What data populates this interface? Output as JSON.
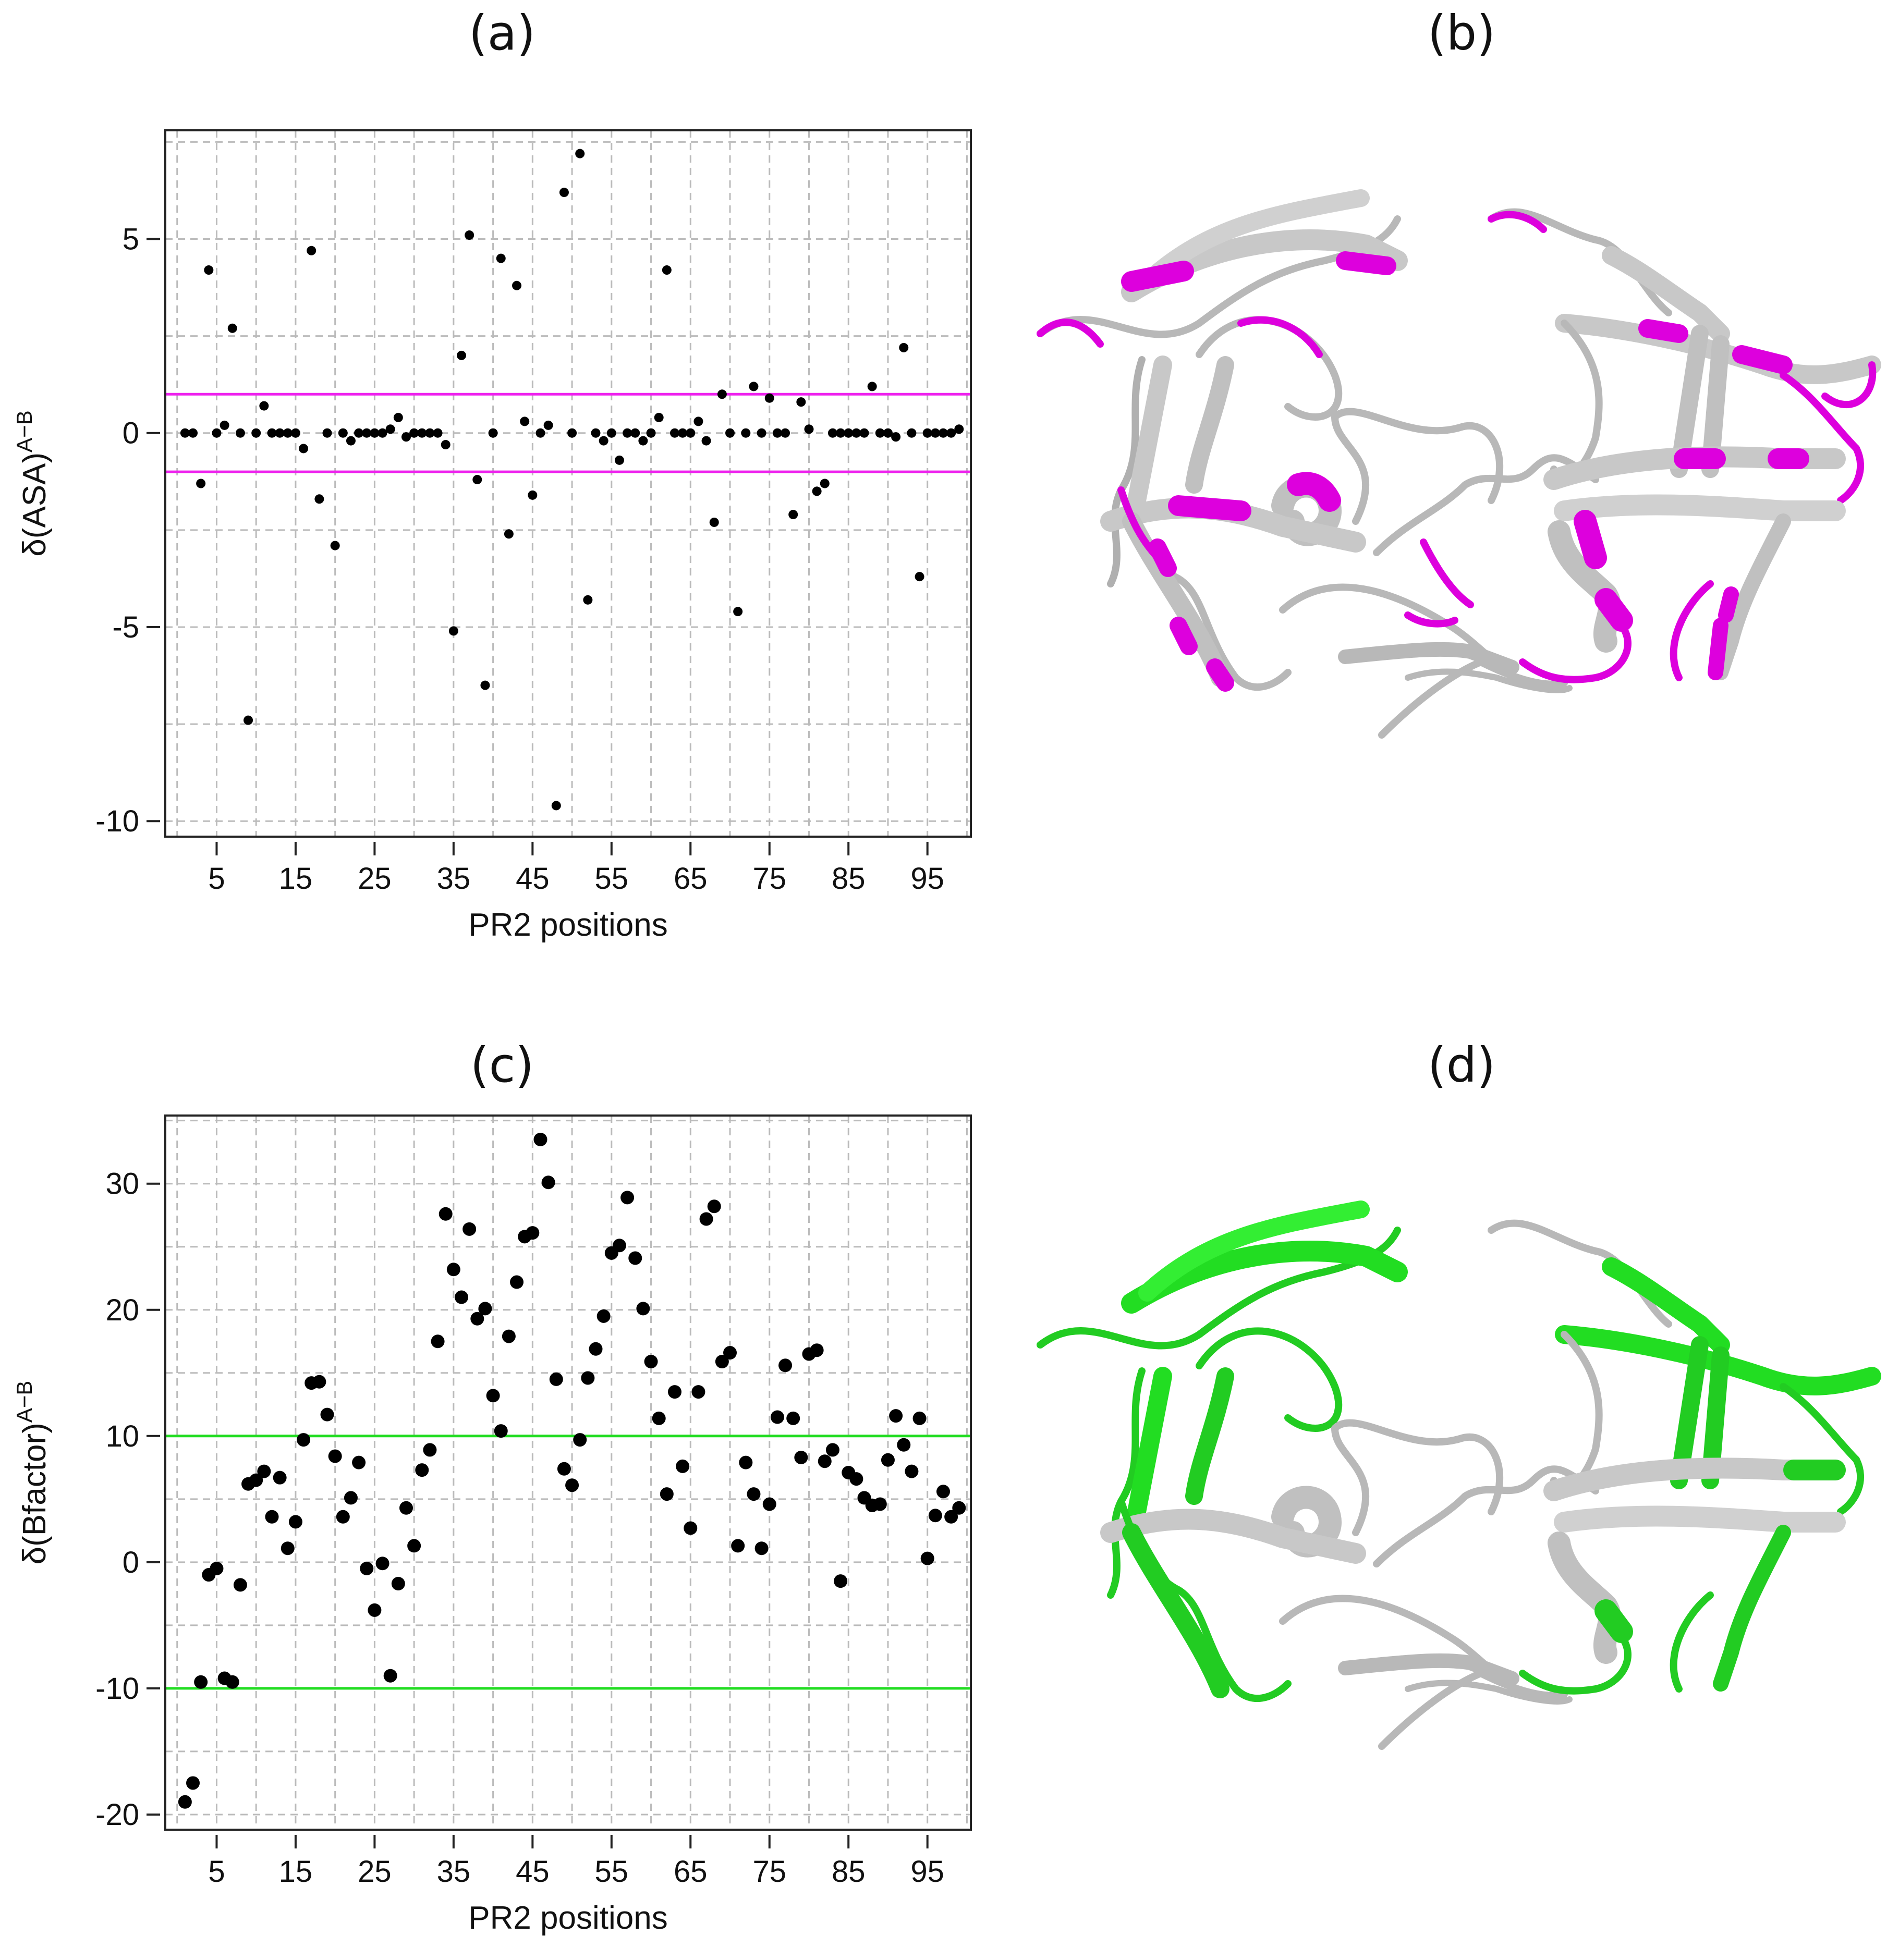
{
  "panels": {
    "a": "(a)",
    "b": "(b)",
    "c": "(c)",
    "d": "(d)"
  },
  "colors": {
    "asa_threshold": "#ee22ee",
    "bfactor_threshold": "#22dd22",
    "grid": "#bbbbbb",
    "point": "#000000"
  },
  "chart_data": [
    {
      "type": "scatter",
      "panel": "(a)",
      "xlabel": "PR2 positions",
      "ylabel": "δ(ASA)",
      "ylabel_sup": "A−B",
      "xlim": [
        -1.5,
        100.5
      ],
      "ylim": [
        -10.4,
        7.8
      ],
      "xticks": [
        5,
        15,
        25,
        35,
        45,
        55,
        65,
        75,
        85,
        95
      ],
      "yticks": [
        -10,
        -5,
        0,
        5
      ],
      "hlines": [
        1,
        -1
      ],
      "x": [
        1,
        2,
        3,
        4,
        5,
        6,
        7,
        8,
        9,
        10,
        11,
        12,
        13,
        14,
        15,
        16,
        17,
        18,
        19,
        20,
        21,
        22,
        23,
        24,
        25,
        26,
        27,
        28,
        29,
        30,
        31,
        32,
        33,
        34,
        35,
        36,
        37,
        38,
        39,
        40,
        41,
        42,
        43,
        44,
        45,
        46,
        47,
        48,
        49,
        50,
        51,
        52,
        53,
        54,
        55,
        56,
        57,
        58,
        59,
        60,
        61,
        62,
        63,
        64,
        65,
        66,
        67,
        68,
        69,
        70,
        71,
        72,
        73,
        74,
        75,
        76,
        77,
        78,
        79,
        80,
        81,
        82,
        83,
        84,
        85,
        86,
        87,
        88,
        89,
        90,
        91,
        92,
        93,
        94,
        95,
        96,
        97,
        98,
        99
      ],
      "y": [
        0,
        0,
        -1.3,
        4.2,
        0,
        0.2,
        2.7,
        0,
        -7.4,
        0,
        0.7,
        0,
        0,
        0,
        0,
        -0.4,
        4.7,
        -1.7,
        0,
        -2.9,
        0,
        -0.2,
        0,
        0,
        0,
        0,
        0.1,
        0.4,
        -0.1,
        0,
        0,
        0,
        0,
        -0.3,
        -5.1,
        2,
        5.1,
        -1.2,
        -6.5,
        0,
        4.5,
        -2.6,
        3.8,
        0.3,
        -1.6,
        0,
        0.2,
        -9.6,
        6.2,
        0,
        7.2,
        -4.3,
        0,
        -0.2,
        0,
        -0.7,
        0,
        0,
        -0.2,
        0,
        0.4,
        4.2,
        0,
        0,
        0,
        0.3,
        -0.2,
        -2.3,
        1,
        0,
        -4.6,
        0,
        1.2,
        0,
        0.9,
        0,
        0,
        -2.1,
        0.8,
        0.1,
        -1.5,
        -1.3,
        0,
        0,
        0,
        0,
        0,
        1.2,
        0,
        0,
        -0.1,
        2.2,
        0,
        -3.7,
        0,
        0,
        0,
        0,
        0.1
      ]
    },
    {
      "type": "scatter",
      "panel": "(c)",
      "xlabel": "PR2 positions",
      "ylabel": "δ(Bfactor)",
      "ylabel_sup": "A−B",
      "xlim": [
        -1.5,
        100.5
      ],
      "ylim": [
        -21.2,
        35.4
      ],
      "xticks": [
        5,
        15,
        25,
        35,
        45,
        55,
        65,
        75,
        85,
        95
      ],
      "yticks": [
        -20,
        -10,
        0,
        10,
        20,
        30
      ],
      "hlines": [
        10,
        -10
      ],
      "x": [
        1,
        2,
        3,
        4,
        5,
        6,
        7,
        8,
        9,
        10,
        11,
        12,
        13,
        14,
        15,
        16,
        17,
        18,
        19,
        20,
        21,
        22,
        23,
        24,
        25,
        26,
        27,
        28,
        29,
        30,
        31,
        32,
        33,
        34,
        35,
        36,
        37,
        38,
        39,
        40,
        41,
        42,
        43,
        44,
        45,
        46,
        47,
        48,
        49,
        50,
        51,
        52,
        53,
        54,
        55,
        56,
        57,
        58,
        59,
        60,
        61,
        62,
        63,
        64,
        65,
        66,
        67,
        68,
        69,
        70,
        71,
        72,
        73,
        74,
        75,
        76,
        77,
        78,
        79,
        80,
        81,
        82,
        83,
        84,
        85,
        86,
        87,
        88,
        89,
        90,
        91,
        92,
        93,
        94,
        95,
        96,
        97,
        98,
        99
      ],
      "y": [
        -19,
        -17.5,
        -9.5,
        -1,
        -0.5,
        -9.2,
        -9.5,
        -1.8,
        6.2,
        6.5,
        7.2,
        3.6,
        6.7,
        1.1,
        3.2,
        9.7,
        14.2,
        14.3,
        11.7,
        8.4,
        3.6,
        5.1,
        7.9,
        -0.5,
        -3.8,
        -0.1,
        -9,
        -1.7,
        4.3,
        1.3,
        7.3,
        8.9,
        17.5,
        27.6,
        23.2,
        21,
        26.4,
        19.3,
        20.1,
        13.2,
        10.4,
        17.9,
        22.2,
        25.8,
        26.1,
        33.5,
        30.1,
        14.5,
        7.4,
        6.1,
        9.7,
        14.6,
        16.9,
        19.5,
        24.5,
        25.1,
        28.9,
        24.1,
        20.1,
        15.9,
        11.4,
        5.4,
        13.5,
        7.6,
        2.7,
        13.5,
        27.2,
        28.2,
        15.9,
        16.6,
        1.3,
        7.9,
        5.4,
        1.1,
        4.6,
        11.5,
        15.6,
        11.4,
        8.3,
        16.5,
        16.8,
        8,
        8.9,
        -1.5,
        7.1,
        6.6,
        5.1,
        4.5,
        4.6,
        8.1,
        11.6,
        9.3,
        7.2,
        11.4,
        0.3,
        3.7,
        5.6,
        3.6,
        4.3
      ]
    }
  ]
}
